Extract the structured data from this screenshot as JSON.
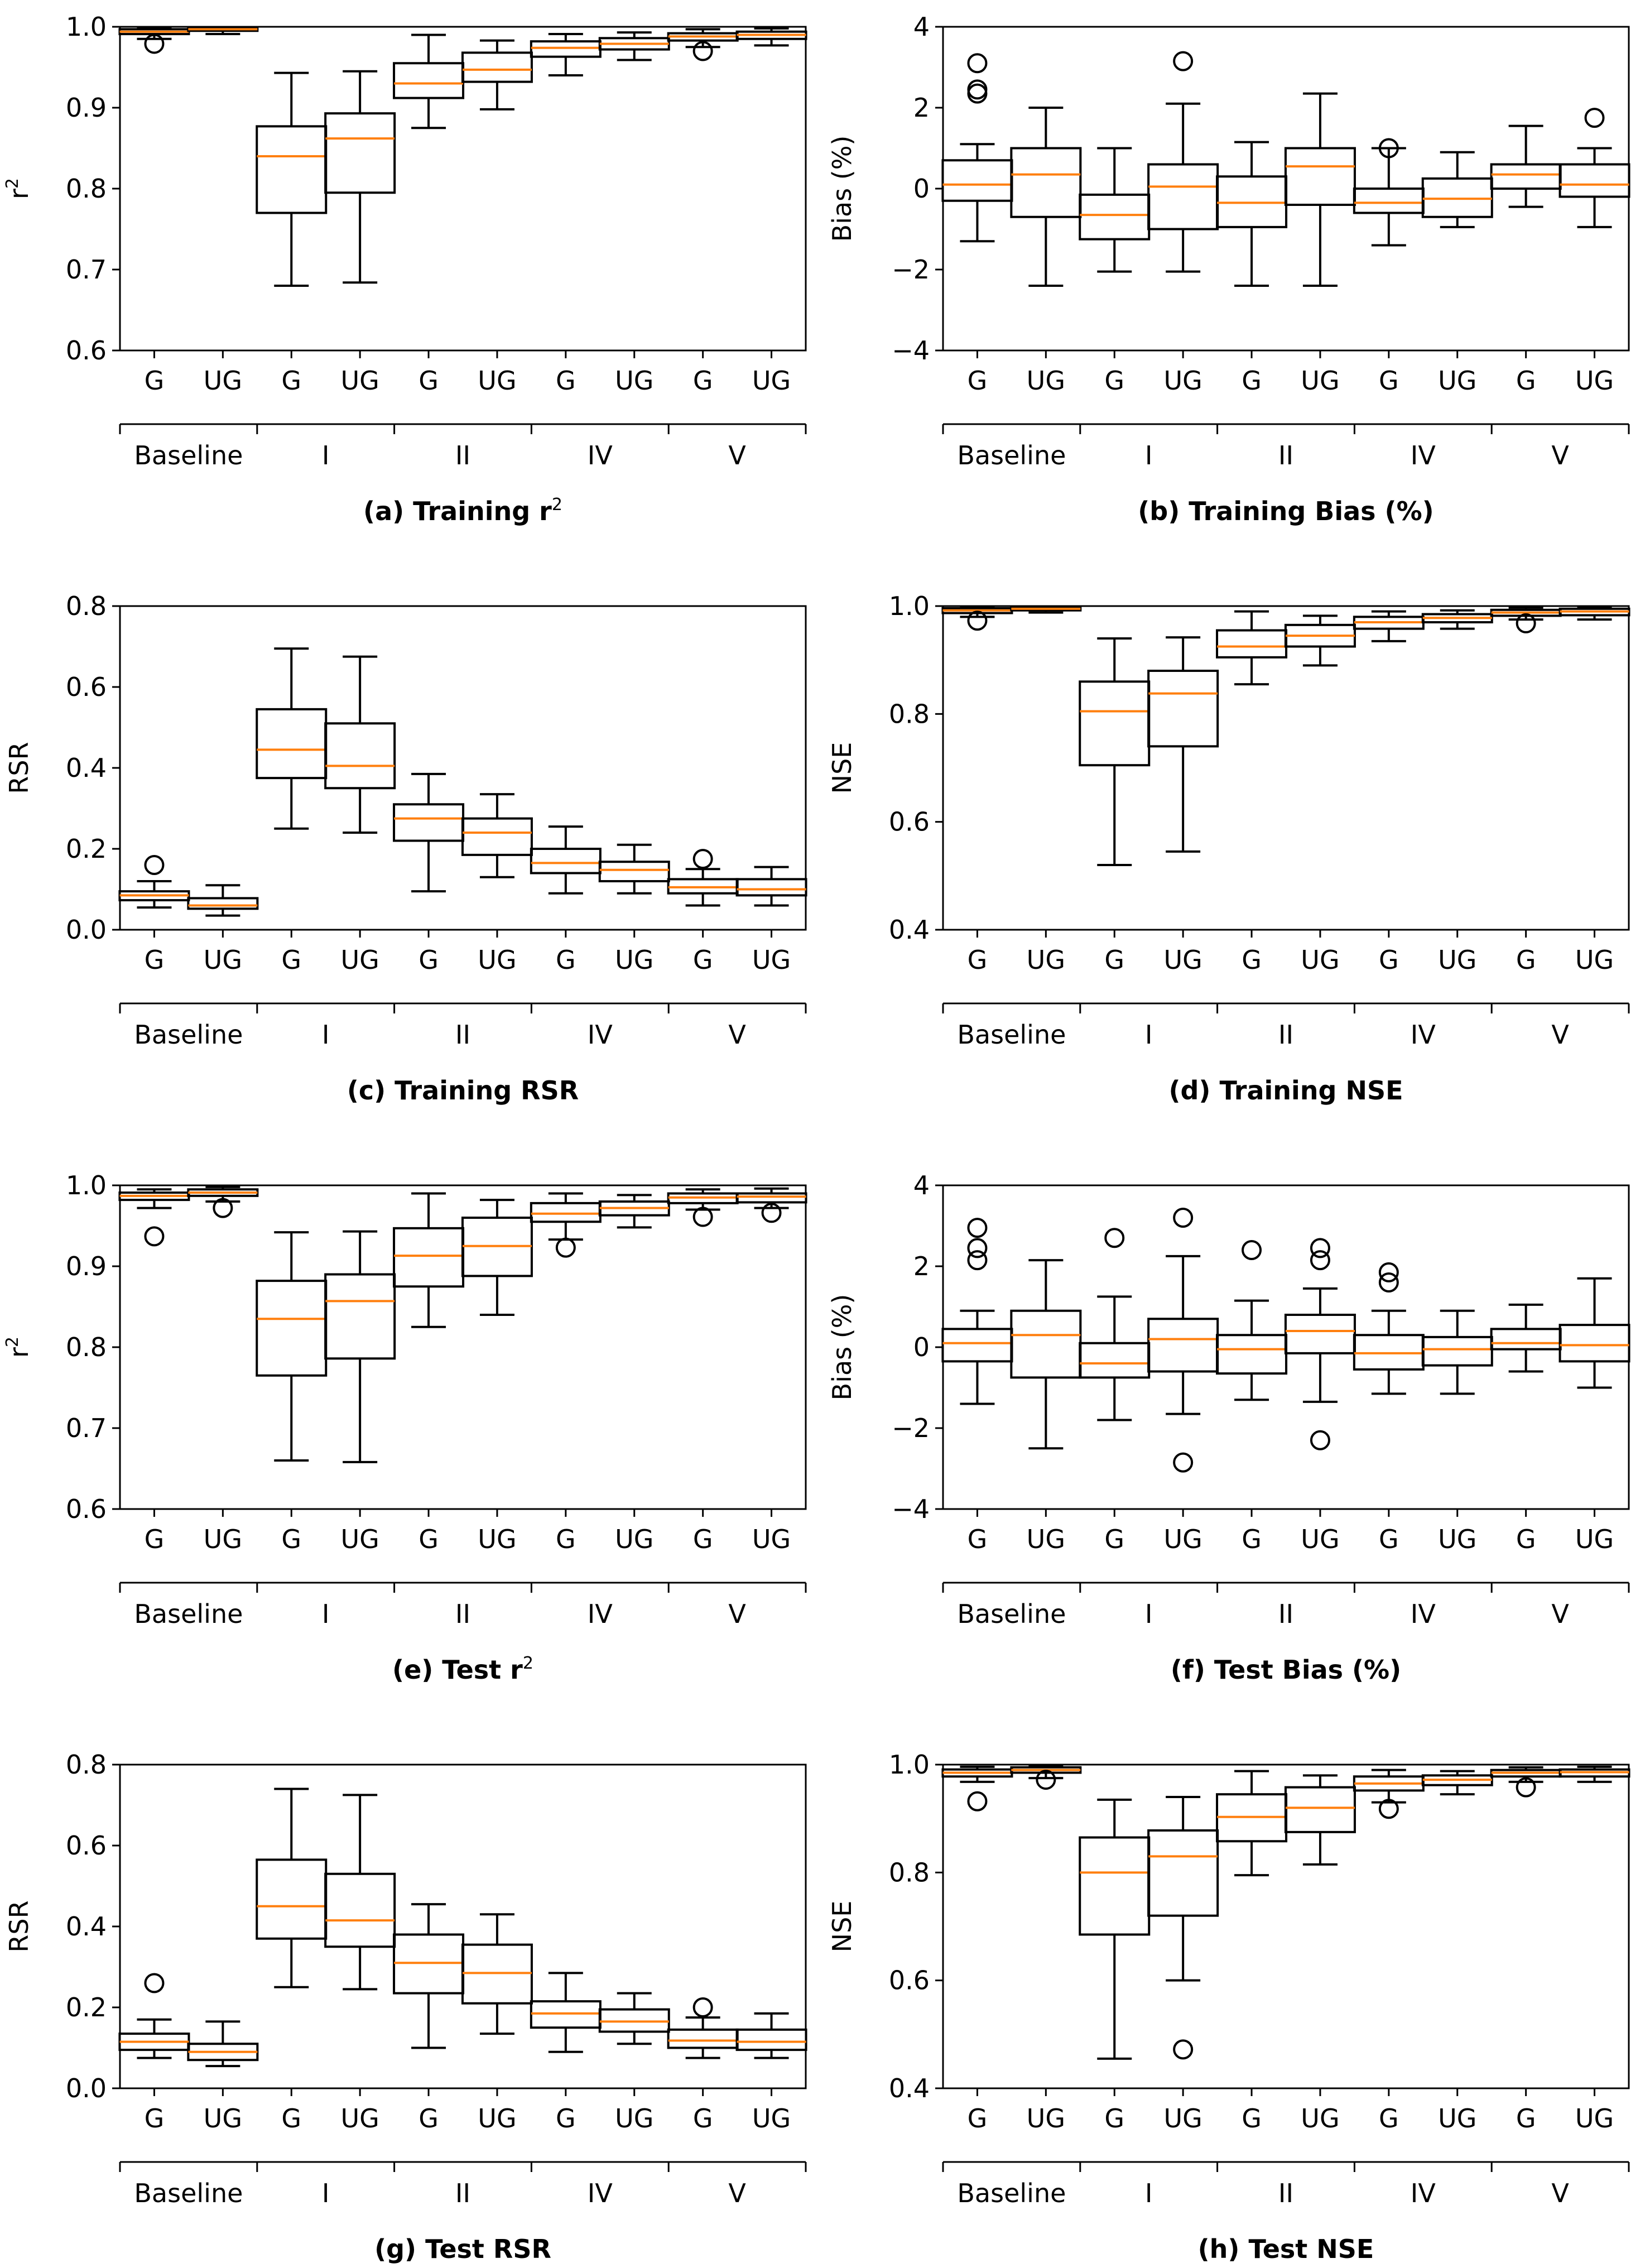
{
  "figure": {
    "categories": [
      "G",
      "UG",
      "G",
      "UG",
      "G",
      "UG",
      "G",
      "UG",
      "G",
      "UG"
    ],
    "groups": [
      "Baseline",
      "I",
      "II",
      "IV",
      "V"
    ],
    "box_color": "#000000",
    "median_color": "#ff7f0e"
  },
  "chart_data": [
    {
      "type": "box",
      "caption": "(a) Training r",
      "caption_sup": "2",
      "ylabel": "r",
      "ylabel_sup": "2",
      "ylim": [
        0.6,
        1.0
      ],
      "yticks": [
        0.6,
        0.7,
        0.8,
        0.9,
        1.0
      ],
      "ytick_labels": [
        "0.6",
        "0.7",
        "0.8",
        "0.9",
        "1.0"
      ],
      "boxes": [
        {
          "q1": 0.991,
          "median": 0.994,
          "q3": 0.997,
          "whisker_low": 0.985,
          "whisker_high": 0.999,
          "outliers": [
            0.979
          ]
        },
        {
          "q1": 0.995,
          "median": 0.997,
          "q3": 0.998,
          "whisker_low": 0.991,
          "whisker_high": 0.999,
          "outliers": []
        },
        {
          "q1": 0.77,
          "median": 0.84,
          "q3": 0.877,
          "whisker_low": 0.68,
          "whisker_high": 0.943,
          "outliers": []
        },
        {
          "q1": 0.795,
          "median": 0.862,
          "q3": 0.893,
          "whisker_low": 0.684,
          "whisker_high": 0.945,
          "outliers": []
        },
        {
          "q1": 0.912,
          "median": 0.93,
          "q3": 0.955,
          "whisker_low": 0.875,
          "whisker_high": 0.99,
          "outliers": []
        },
        {
          "q1": 0.932,
          "median": 0.947,
          "q3": 0.968,
          "whisker_low": 0.898,
          "whisker_high": 0.983,
          "outliers": []
        },
        {
          "q1": 0.963,
          "median": 0.974,
          "q3": 0.982,
          "whisker_low": 0.94,
          "whisker_high": 0.991,
          "outliers": []
        },
        {
          "q1": 0.972,
          "median": 0.979,
          "q3": 0.986,
          "whisker_low": 0.959,
          "whisker_high": 0.993,
          "outliers": []
        },
        {
          "q1": 0.983,
          "median": 0.988,
          "q3": 0.992,
          "whisker_low": 0.975,
          "whisker_high": 0.997,
          "outliers": [
            0.97
          ]
        },
        {
          "q1": 0.985,
          "median": 0.99,
          "q3": 0.994,
          "whisker_low": 0.977,
          "whisker_high": 0.998,
          "outliers": []
        }
      ]
    },
    {
      "type": "box",
      "caption": "(b) Training Bias (%)",
      "caption_sup": "",
      "ylabel": "Bias (%)",
      "ylabel_sup": "",
      "ylim": [
        -4,
        4
      ],
      "yticks": [
        -4,
        -2,
        0,
        2,
        4
      ],
      "ytick_labels": [
        "−4",
        "−2",
        "0",
        "2",
        "4"
      ],
      "boxes": [
        {
          "q1": -0.3,
          "median": 0.1,
          "q3": 0.7,
          "whisker_low": -1.3,
          "whisker_high": 1.1,
          "outliers": [
            2.35,
            2.45,
            3.1
          ]
        },
        {
          "q1": -0.7,
          "median": 0.35,
          "q3": 1.0,
          "whisker_low": -2.4,
          "whisker_high": 2.0,
          "outliers": []
        },
        {
          "q1": -1.25,
          "median": -0.65,
          "q3": -0.15,
          "whisker_low": -2.05,
          "whisker_high": 1.0,
          "outliers": []
        },
        {
          "q1": -1.0,
          "median": 0.05,
          "q3": 0.6,
          "whisker_low": -2.05,
          "whisker_high": 2.1,
          "outliers": [
            3.15
          ]
        },
        {
          "q1": -0.95,
          "median": -0.35,
          "q3": 0.3,
          "whisker_low": -2.4,
          "whisker_high": 1.15,
          "outliers": []
        },
        {
          "q1": -0.4,
          "median": 0.55,
          "q3": 1.0,
          "whisker_low": -2.4,
          "whisker_high": 2.35,
          "outliers": []
        },
        {
          "q1": -0.6,
          "median": -0.35,
          "q3": 0.0,
          "whisker_low": -1.4,
          "whisker_high": 1.0,
          "outliers": [
            1.0
          ]
        },
        {
          "q1": -0.7,
          "median": -0.25,
          "q3": 0.25,
          "whisker_low": -0.95,
          "whisker_high": 0.9,
          "outliers": []
        },
        {
          "q1": 0.0,
          "median": 0.35,
          "q3": 0.6,
          "whisker_low": -0.45,
          "whisker_high": 1.55,
          "outliers": []
        },
        {
          "q1": -0.2,
          "median": 0.1,
          "q3": 0.6,
          "whisker_low": -0.95,
          "whisker_high": 1.0,
          "outliers": [
            1.75
          ]
        }
      ]
    },
    {
      "type": "box",
      "caption": "(c) Training RSR",
      "caption_sup": "",
      "ylabel": "RSR",
      "ylabel_sup": "",
      "ylim": [
        0.0,
        0.8
      ],
      "yticks": [
        0.0,
        0.2,
        0.4,
        0.6,
        0.8
      ],
      "ytick_labels": [
        "0.0",
        "0.2",
        "0.4",
        "0.6",
        "0.8"
      ],
      "boxes": [
        {
          "q1": 0.073,
          "median": 0.085,
          "q3": 0.095,
          "whisker_low": 0.055,
          "whisker_high": 0.12,
          "outliers": [
            0.16
          ]
        },
        {
          "q1": 0.052,
          "median": 0.06,
          "q3": 0.078,
          "whisker_low": 0.035,
          "whisker_high": 0.11,
          "outliers": []
        },
        {
          "q1": 0.375,
          "median": 0.445,
          "q3": 0.545,
          "whisker_low": 0.25,
          "whisker_high": 0.695,
          "outliers": []
        },
        {
          "q1": 0.35,
          "median": 0.405,
          "q3": 0.51,
          "whisker_low": 0.24,
          "whisker_high": 0.675,
          "outliers": []
        },
        {
          "q1": 0.22,
          "median": 0.275,
          "q3": 0.31,
          "whisker_low": 0.095,
          "whisker_high": 0.385,
          "outliers": []
        },
        {
          "q1": 0.185,
          "median": 0.24,
          "q3": 0.275,
          "whisker_low": 0.13,
          "whisker_high": 0.335,
          "outliers": []
        },
        {
          "q1": 0.14,
          "median": 0.165,
          "q3": 0.2,
          "whisker_low": 0.09,
          "whisker_high": 0.255,
          "outliers": []
        },
        {
          "q1": 0.12,
          "median": 0.148,
          "q3": 0.168,
          "whisker_low": 0.09,
          "whisker_high": 0.21,
          "outliers": []
        },
        {
          "q1": 0.09,
          "median": 0.105,
          "q3": 0.125,
          "whisker_low": 0.06,
          "whisker_high": 0.15,
          "outliers": [
            0.175
          ]
        },
        {
          "q1": 0.085,
          "median": 0.1,
          "q3": 0.125,
          "whisker_low": 0.06,
          "whisker_high": 0.155,
          "outliers": []
        }
      ]
    },
    {
      "type": "box",
      "caption": "(d) Training NSE",
      "caption_sup": "",
      "ylabel": "NSE",
      "ylabel_sup": "",
      "ylim": [
        0.4,
        1.0
      ],
      "yticks": [
        0.4,
        0.6,
        0.8,
        1.0
      ],
      "ytick_labels": [
        "0.4",
        "0.6",
        "0.8",
        "1.0"
      ],
      "boxes": [
        {
          "q1": 0.987,
          "median": 0.992,
          "q3": 0.996,
          "whisker_low": 0.98,
          "whisker_high": 0.999,
          "outliers": [
            0.973
          ]
        },
        {
          "q1": 0.992,
          "median": 0.995,
          "q3": 0.997,
          "whisker_low": 0.988,
          "whisker_high": 0.999,
          "outliers": []
        },
        {
          "q1": 0.705,
          "median": 0.805,
          "q3": 0.86,
          "whisker_low": 0.52,
          "whisker_high": 0.94,
          "outliers": []
        },
        {
          "q1": 0.74,
          "median": 0.838,
          "q3": 0.88,
          "whisker_low": 0.545,
          "whisker_high": 0.942,
          "outliers": []
        },
        {
          "q1": 0.905,
          "median": 0.925,
          "q3": 0.955,
          "whisker_low": 0.855,
          "whisker_high": 0.99,
          "outliers": []
        },
        {
          "q1": 0.925,
          "median": 0.945,
          "q3": 0.965,
          "whisker_low": 0.89,
          "whisker_high": 0.982,
          "outliers": []
        },
        {
          "q1": 0.958,
          "median": 0.97,
          "q3": 0.98,
          "whisker_low": 0.935,
          "whisker_high": 0.99,
          "outliers": []
        },
        {
          "q1": 0.97,
          "median": 0.978,
          "q3": 0.985,
          "whisker_low": 0.958,
          "whisker_high": 0.992,
          "outliers": []
        },
        {
          "q1": 0.982,
          "median": 0.988,
          "q3": 0.993,
          "whisker_low": 0.975,
          "whisker_high": 0.997,
          "outliers": [
            0.968
          ]
        },
        {
          "q1": 0.983,
          "median": 0.99,
          "q3": 0.995,
          "whisker_low": 0.975,
          "whisker_high": 0.998,
          "outliers": []
        }
      ]
    },
    {
      "type": "box",
      "caption": "(e) Test r",
      "caption_sup": "2",
      "ylabel": "r",
      "ylabel_sup": "2",
      "ylim": [
        0.6,
        1.0
      ],
      "yticks": [
        0.6,
        0.7,
        0.8,
        0.9,
        1.0
      ],
      "ytick_labels": [
        "0.6",
        "0.7",
        "0.8",
        "0.9",
        "1.0"
      ],
      "boxes": [
        {
          "q1": 0.982,
          "median": 0.987,
          "q3": 0.991,
          "whisker_low": 0.972,
          "whisker_high": 0.995,
          "outliers": [
            0.937
          ]
        },
        {
          "q1": 0.987,
          "median": 0.991,
          "q3": 0.995,
          "whisker_low": 0.98,
          "whisker_high": 0.998,
          "outliers": [
            0.972
          ]
        },
        {
          "q1": 0.765,
          "median": 0.835,
          "q3": 0.882,
          "whisker_low": 0.66,
          "whisker_high": 0.942,
          "outliers": []
        },
        {
          "q1": 0.786,
          "median": 0.857,
          "q3": 0.89,
          "whisker_low": 0.658,
          "whisker_high": 0.943,
          "outliers": []
        },
        {
          "q1": 0.875,
          "median": 0.913,
          "q3": 0.947,
          "whisker_low": 0.825,
          "whisker_high": 0.99,
          "outliers": []
        },
        {
          "q1": 0.888,
          "median": 0.925,
          "q3": 0.96,
          "whisker_low": 0.84,
          "whisker_high": 0.982,
          "outliers": []
        },
        {
          "q1": 0.955,
          "median": 0.965,
          "q3": 0.978,
          "whisker_low": 0.933,
          "whisker_high": 0.99,
          "outliers": [
            0.923
          ]
        },
        {
          "q1": 0.963,
          "median": 0.972,
          "q3": 0.98,
          "whisker_low": 0.948,
          "whisker_high": 0.988,
          "outliers": []
        },
        {
          "q1": 0.978,
          "median": 0.985,
          "q3": 0.99,
          "whisker_low": 0.97,
          "whisker_high": 0.995,
          "outliers": [
            0.961
          ]
        },
        {
          "q1": 0.979,
          "median": 0.986,
          "q3": 0.99,
          "whisker_low": 0.972,
          "whisker_high": 0.996,
          "outliers": [
            0.966
          ]
        }
      ]
    },
    {
      "type": "box",
      "caption": "(f) Test Bias (%)",
      "caption_sup": "",
      "ylabel": "Bias (%)",
      "ylabel_sup": "",
      "ylim": [
        -4,
        4
      ],
      "yticks": [
        -4,
        -2,
        0,
        2,
        4
      ],
      "ytick_labels": [
        "−4",
        "−2",
        "0",
        "2",
        "4"
      ],
      "boxes": [
        {
          "q1": -0.35,
          "median": 0.1,
          "q3": 0.45,
          "whisker_low": -1.4,
          "whisker_high": 0.9,
          "outliers": [
            2.15,
            2.45,
            2.95
          ]
        },
        {
          "q1": -0.75,
          "median": 0.3,
          "q3": 0.9,
          "whisker_low": -2.5,
          "whisker_high": 2.15,
          "outliers": []
        },
        {
          "q1": -0.75,
          "median": -0.4,
          "q3": 0.1,
          "whisker_low": -1.8,
          "whisker_high": 1.25,
          "outliers": [
            2.7
          ]
        },
        {
          "q1": -0.6,
          "median": 0.2,
          "q3": 0.7,
          "whisker_low": -1.65,
          "whisker_high": 2.25,
          "outliers": [
            3.2,
            -2.85
          ]
        },
        {
          "q1": -0.65,
          "median": -0.05,
          "q3": 0.3,
          "whisker_low": -1.3,
          "whisker_high": 1.15,
          "outliers": [
            2.4
          ]
        },
        {
          "q1": -0.15,
          "median": 0.4,
          "q3": 0.8,
          "whisker_low": -1.35,
          "whisker_high": 1.45,
          "outliers": [
            2.15,
            2.45,
            -2.3
          ]
        },
        {
          "q1": -0.55,
          "median": -0.15,
          "q3": 0.3,
          "whisker_low": -1.15,
          "whisker_high": 0.9,
          "outliers": [
            1.6,
            1.85
          ]
        },
        {
          "q1": -0.45,
          "median": -0.05,
          "q3": 0.25,
          "whisker_low": -1.15,
          "whisker_high": 0.9,
          "outliers": []
        },
        {
          "q1": -0.05,
          "median": 0.1,
          "q3": 0.45,
          "whisker_low": -0.6,
          "whisker_high": 1.05,
          "outliers": []
        },
        {
          "q1": -0.35,
          "median": 0.05,
          "q3": 0.55,
          "whisker_low": -1.0,
          "whisker_high": 1.7,
          "outliers": []
        }
      ]
    },
    {
      "type": "box",
      "caption": "(g) Test RSR",
      "caption_sup": "",
      "ylabel": "RSR",
      "ylabel_sup": "",
      "ylim": [
        0.0,
        0.8
      ],
      "yticks": [
        0.0,
        0.2,
        0.4,
        0.6,
        0.8
      ],
      "ytick_labels": [
        "0.0",
        "0.2",
        "0.4",
        "0.6",
        "0.8"
      ],
      "boxes": [
        {
          "q1": 0.095,
          "median": 0.115,
          "q3": 0.135,
          "whisker_low": 0.075,
          "whisker_high": 0.17,
          "outliers": [
            0.26
          ]
        },
        {
          "q1": 0.07,
          "median": 0.09,
          "q3": 0.11,
          "whisker_low": 0.055,
          "whisker_high": 0.165,
          "outliers": []
        },
        {
          "q1": 0.37,
          "median": 0.45,
          "q3": 0.565,
          "whisker_low": 0.25,
          "whisker_high": 0.74,
          "outliers": []
        },
        {
          "q1": 0.35,
          "median": 0.415,
          "q3": 0.53,
          "whisker_low": 0.245,
          "whisker_high": 0.725,
          "outliers": []
        },
        {
          "q1": 0.235,
          "median": 0.31,
          "q3": 0.38,
          "whisker_low": 0.1,
          "whisker_high": 0.455,
          "outliers": []
        },
        {
          "q1": 0.21,
          "median": 0.285,
          "q3": 0.355,
          "whisker_low": 0.135,
          "whisker_high": 0.43,
          "outliers": []
        },
        {
          "q1": 0.15,
          "median": 0.185,
          "q3": 0.215,
          "whisker_low": 0.09,
          "whisker_high": 0.285,
          "outliers": []
        },
        {
          "q1": 0.14,
          "median": 0.165,
          "q3": 0.195,
          "whisker_low": 0.11,
          "whisker_high": 0.235,
          "outliers": []
        },
        {
          "q1": 0.1,
          "median": 0.118,
          "q3": 0.145,
          "whisker_low": 0.075,
          "whisker_high": 0.175,
          "outliers": [
            0.2
          ]
        },
        {
          "q1": 0.095,
          "median": 0.115,
          "q3": 0.145,
          "whisker_low": 0.075,
          "whisker_high": 0.185,
          "outliers": []
        }
      ]
    },
    {
      "type": "box",
      "caption": "(h) Test NSE",
      "caption_sup": "",
      "ylabel": "NSE",
      "ylabel_sup": "",
      "ylim": [
        0.4,
        1.0
      ],
      "yticks": [
        0.4,
        0.6,
        0.8,
        1.0
      ],
      "ytick_labels": [
        "0.4",
        "0.6",
        "0.8",
        "1.0"
      ],
      "boxes": [
        {
          "q1": 0.978,
          "median": 0.985,
          "q3": 0.991,
          "whisker_low": 0.968,
          "whisker_high": 0.996,
          "outliers": [
            0.932
          ]
        },
        {
          "q1": 0.985,
          "median": 0.99,
          "q3": 0.995,
          "whisker_low": 0.975,
          "whisker_high": 0.998,
          "outliers": [
            0.972
          ]
        },
        {
          "q1": 0.685,
          "median": 0.8,
          "q3": 0.865,
          "whisker_low": 0.455,
          "whisker_high": 0.935,
          "outliers": []
        },
        {
          "q1": 0.72,
          "median": 0.83,
          "q3": 0.878,
          "whisker_low": 0.6,
          "whisker_high": 0.94,
          "outliers": [
            0.472
          ]
        },
        {
          "q1": 0.858,
          "median": 0.903,
          "q3": 0.945,
          "whisker_low": 0.795,
          "whisker_high": 0.988,
          "outliers": []
        },
        {
          "q1": 0.875,
          "median": 0.92,
          "q3": 0.958,
          "whisker_low": 0.815,
          "whisker_high": 0.98,
          "outliers": []
        },
        {
          "q1": 0.952,
          "median": 0.965,
          "q3": 0.978,
          "whisker_low": 0.93,
          "whisker_high": 0.99,
          "outliers": [
            0.918
          ]
        },
        {
          "q1": 0.962,
          "median": 0.972,
          "q3": 0.98,
          "whisker_low": 0.945,
          "whisker_high": 0.988,
          "outliers": []
        },
        {
          "q1": 0.978,
          "median": 0.985,
          "q3": 0.99,
          "whisker_low": 0.968,
          "whisker_high": 0.995,
          "outliers": [
            0.958
          ]
        },
        {
          "q1": 0.978,
          "median": 0.986,
          "q3": 0.991,
          "whisker_low": 0.968,
          "whisker_high": 0.996,
          "outliers": []
        }
      ]
    }
  ]
}
